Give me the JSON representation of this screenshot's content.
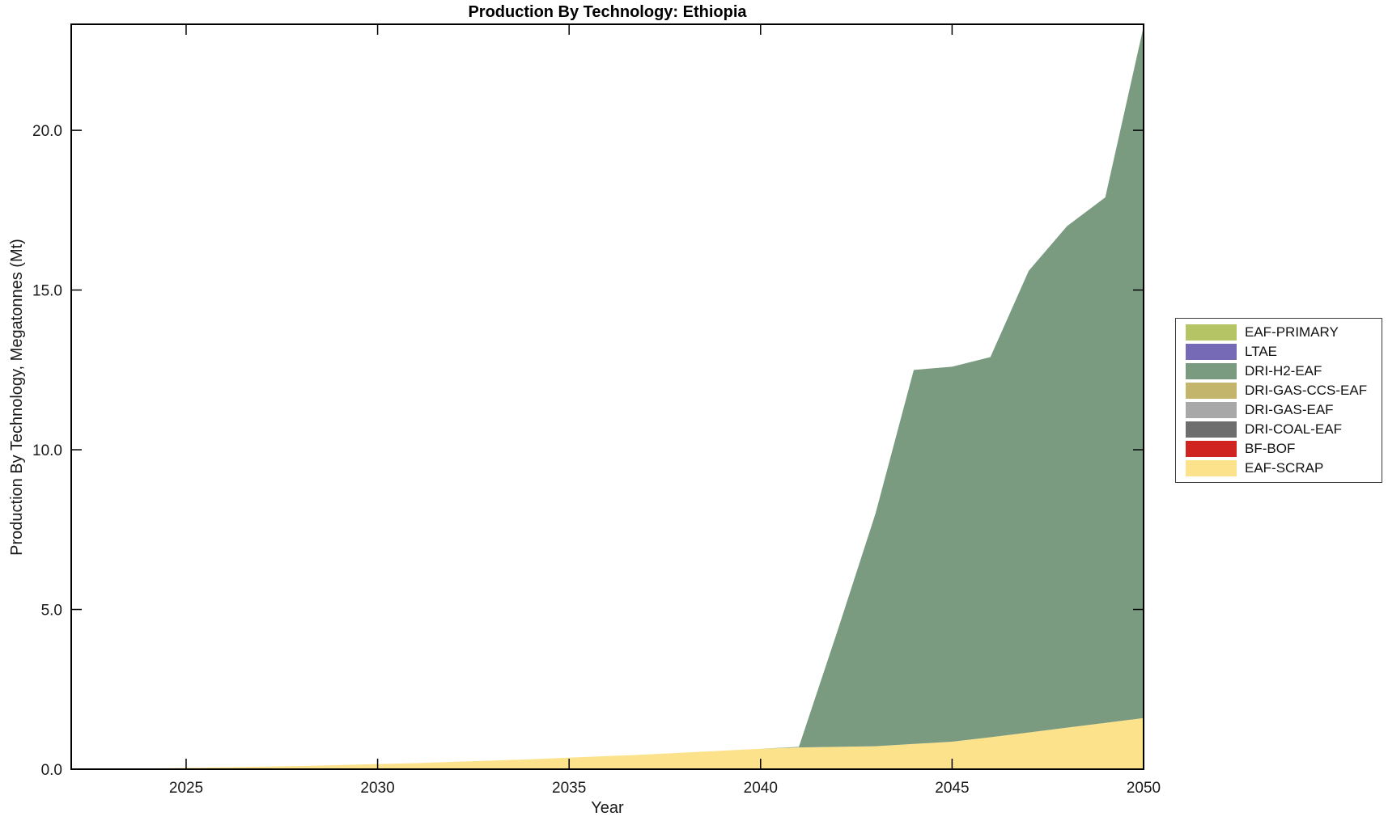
{
  "chart_data": {
    "type": "area",
    "stacked": true,
    "title": "Production By Technology: Ethiopia",
    "xlabel": "Year",
    "ylabel": "Production By Technology, Megatonnes (Mt)",
    "grid": false,
    "legend_position": "right-outside",
    "xlim": [
      2022,
      2050
    ],
    "ylim": [
      0,
      23.32
    ],
    "xticks": [
      2025,
      2030,
      2035,
      2040,
      2045,
      2050
    ],
    "xtick_labels": [
      "2025",
      "2030",
      "2035",
      "2040",
      "2045",
      "2050"
    ],
    "yticks": [
      0,
      5,
      10,
      15,
      20
    ],
    "ytick_labels": [
      "0.0",
      "5.0",
      "10.0",
      "15.0",
      "20.0"
    ],
    "x": [
      2022,
      2023,
      2024,
      2025,
      2026,
      2027,
      2028,
      2029,
      2030,
      2031,
      2032,
      2033,
      2034,
      2035,
      2036,
      2037,
      2038,
      2039,
      2040,
      2041,
      2042,
      2043,
      2044,
      2045,
      2046,
      2047,
      2048,
      2049,
      2050
    ],
    "series": [
      {
        "name": "EAF-SCRAP",
        "color": "#fde28c",
        "values": [
          0.0,
          0.01,
          0.02,
          0.04,
          0.06,
          0.08,
          0.1,
          0.13,
          0.16,
          0.19,
          0.23,
          0.27,
          0.31,
          0.36,
          0.41,
          0.46,
          0.52,
          0.58,
          0.64,
          0.68,
          0.7,
          0.72,
          0.79,
          0.86,
          1.0,
          1.15,
          1.3,
          1.45,
          1.6
        ]
      },
      {
        "name": "BF-BOF",
        "color": "#cf2420",
        "values": [
          0,
          0,
          0,
          0,
          0,
          0,
          0,
          0,
          0,
          0,
          0,
          0,
          0,
          0,
          0,
          0,
          0,
          0,
          0,
          0,
          0,
          0,
          0,
          0,
          0,
          0,
          0,
          0,
          0
        ]
      },
      {
        "name": "DRI-COAL-EAF",
        "color": "#6e6e6e",
        "values": [
          0,
          0,
          0,
          0,
          0,
          0,
          0,
          0,
          0,
          0,
          0,
          0,
          0,
          0,
          0,
          0,
          0,
          0,
          0,
          0,
          0,
          0,
          0,
          0,
          0,
          0,
          0,
          0,
          0
        ]
      },
      {
        "name": "DRI-GAS-EAF",
        "color": "#a8a8a8",
        "values": [
          0,
          0,
          0,
          0,
          0,
          0,
          0,
          0,
          0,
          0,
          0,
          0,
          0,
          0,
          0,
          0,
          0,
          0,
          0,
          0,
          0,
          0,
          0,
          0,
          0,
          0,
          0,
          0,
          0
        ]
      },
      {
        "name": "DRI-GAS-CCS-EAF",
        "color": "#c3b66c",
        "values": [
          0,
          0,
          0,
          0,
          0,
          0,
          0,
          0,
          0,
          0,
          0,
          0,
          0,
          0,
          0,
          0,
          0,
          0,
          0,
          0,
          0,
          0,
          0,
          0,
          0,
          0,
          0,
          0,
          0
        ]
      },
      {
        "name": "DRI-H2-EAF",
        "color": "#7a9b80",
        "values": [
          0,
          0,
          0,
          0,
          0,
          0,
          0,
          0,
          0,
          0,
          0,
          0,
          0,
          0,
          0,
          0,
          0,
          0,
          0,
          0.02,
          3.6,
          7.28,
          11.71,
          11.74,
          11.9,
          14.45,
          15.7,
          16.45,
          21.65
        ]
      },
      {
        "name": "LTAE",
        "color": "#7669b5",
        "values": [
          0,
          0,
          0,
          0,
          0,
          0,
          0,
          0,
          0,
          0,
          0,
          0,
          0,
          0,
          0,
          0,
          0,
          0,
          0,
          0,
          0,
          0,
          0,
          0,
          0,
          0,
          0,
          0,
          0
        ]
      },
      {
        "name": "EAF-PRIMARY",
        "color": "#b5c465",
        "values": [
          0,
          0,
          0,
          0,
          0,
          0,
          0,
          0,
          0,
          0,
          0,
          0,
          0,
          0,
          0,
          0,
          0,
          0,
          0,
          0,
          0,
          0,
          0,
          0,
          0,
          0,
          0,
          0,
          0
        ]
      }
    ],
    "legend_order_top_to_bottom": [
      "EAF-PRIMARY",
      "LTAE",
      "DRI-H2-EAF",
      "DRI-GAS-CCS-EAF",
      "DRI-GAS-EAF",
      "DRI-COAL-EAF",
      "BF-BOF",
      "EAF-SCRAP"
    ]
  }
}
